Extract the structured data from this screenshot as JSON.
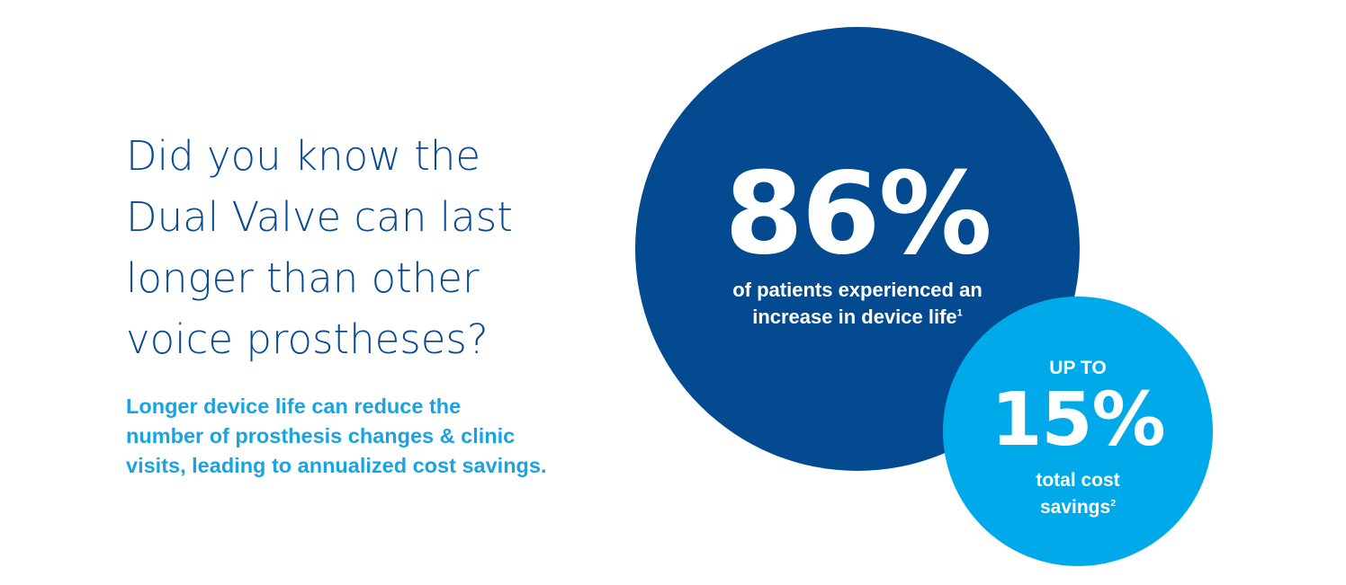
{
  "headline": {
    "lines": [
      "Did you know the",
      "Dual Valve can last",
      "longer than other",
      "voice prostheses?"
    ]
  },
  "subtext": {
    "lines": [
      "Longer device life can reduce the",
      "number of prosthesis changes & clinic",
      "visits, leading to annualized cost savings."
    ]
  },
  "stat_primary": {
    "value": "86%",
    "caption_line1": "of patients experienced an",
    "caption_line2": "increase in device life",
    "footnote": "1"
  },
  "stat_secondary": {
    "prefix": "UP TO",
    "value": "15%",
    "caption_line1": "total cost",
    "caption_line2": "savings",
    "footnote": "2"
  },
  "colors": {
    "dark_blue": "#044a90",
    "light_blue": "#00aaea",
    "headline_text": "#0a4a8f",
    "subtext_text": "#1aa3e1"
  }
}
